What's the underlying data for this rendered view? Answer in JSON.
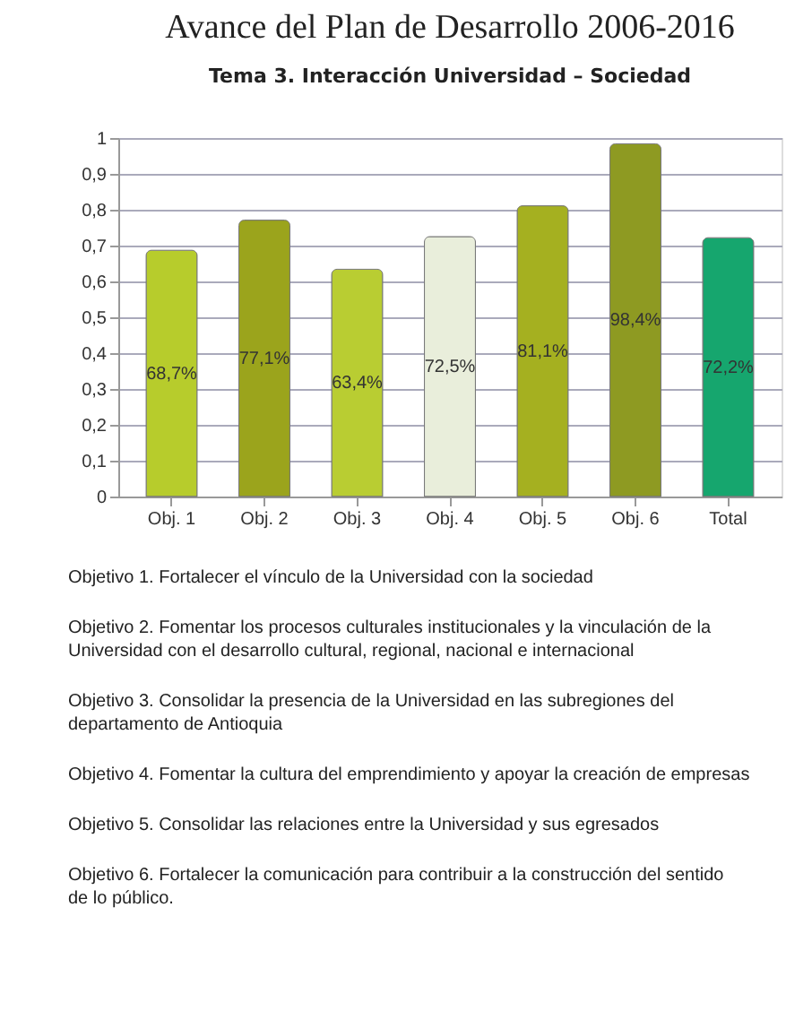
{
  "chart_data": {
    "type": "bar",
    "title": "Avance del Plan de Desarrollo 2006-2016",
    "subtitle": "Tema 3. Interacción Universidad – Sociedad",
    "categories": [
      "Obj. 1",
      "Obj. 2",
      "Obj. 3",
      "Obj. 4",
      "Obj. 5",
      "Obj. 6",
      "Total"
    ],
    "values": [
      0.687,
      0.771,
      0.634,
      0.725,
      0.811,
      0.984,
      0.722
    ],
    "value_labels": [
      "68,7%",
      "77,1%",
      "63,4%",
      "72,5%",
      "81,1%",
      "98,4%",
      "72,2%"
    ],
    "colors": [
      "#b7cc2c",
      "#9ba41c",
      "#b9cd32",
      "#e9eedb",
      "#a5b020",
      "#8e9a22",
      "#16a66e"
    ],
    "ylim": [
      0,
      1
    ],
    "yticks": [
      0,
      {
        "value": 0.1,
        "label": "0,1"
      },
      {
        "value": 0.2,
        "label": "0,2"
      },
      {
        "value": 0.3,
        "label": "0,3"
      },
      {
        "value": 0.4,
        "label": "0,4"
      },
      {
        "value": 0.5,
        "label": "0,5"
      },
      {
        "value": 0.6,
        "label": "0,6"
      },
      {
        "value": 0.7,
        "label": "0,7"
      },
      {
        "value": 0.8,
        "label": "0,8"
      },
      {
        "value": 0.9,
        "label": "0,9"
      },
      1
    ],
    "grid": "y",
    "legend": false,
    "annotations": [
      "Objetivo 1. Fortalecer el vínculo de la Universidad con la sociedad",
      "Objetivo 2. Fomentar los procesos culturales institucionales y la vinculación de la Universidad con el desarrollo cultural, regional, nacional e internacional",
      "Objetivo 3. Consolidar la presencia de la Universidad en las subregiones del departamento de Antioquia",
      "Objetivo 4. Fomentar la cultura del emprendimiento y apoyar la creación de empresas",
      "Objetivo 5. Consolidar las relaciones entre la Universidad y sus egresados",
      "Objetivo 6. Fortalecer la comunicación para contribuir a la construcción del sentido de lo público."
    ]
  }
}
